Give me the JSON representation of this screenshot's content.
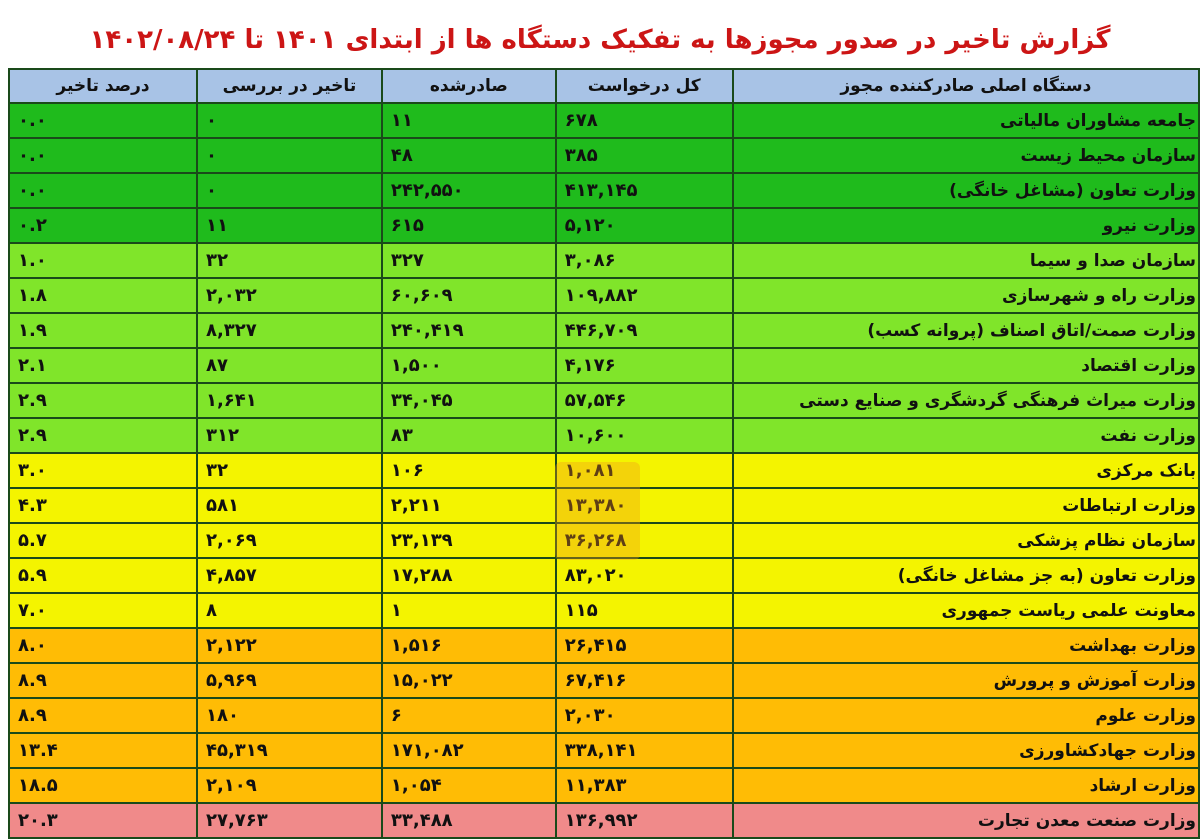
{
  "title": "گزارش تاخیر در صدور مجوزها به تفکیک دستگاه ها از ابتدای ۱۴۰۱ تا ۱۴۰۲/۰۸/۲۴",
  "headers": {
    "name": "دستگاه اصلی صادرکننده مجوز",
    "total": "کل درخواست",
    "issued": "صادرشده",
    "delay": "تاخیر در بررسی",
    "pct": "درصد تاخیر"
  },
  "colors": {
    "dark_green": "#1fbb1c",
    "light_green": "#80e52a",
    "yellow": "#f4f400",
    "orange": "#ffbc05",
    "red": "#f08a8a",
    "header": "#a8c3e6",
    "title": "#cc1515"
  },
  "watermark": "Tasnim",
  "rows": [
    {
      "name": "جامعه مشاوران مالیاتی",
      "total": "۶۷۸",
      "issued": "۱۱",
      "delay": "۰",
      "pct": "۰.۰",
      "band": "g1"
    },
    {
      "name": "سازمان محیط زیست",
      "total": "۳۸۵",
      "issued": "۴۸",
      "delay": "۰",
      "pct": "۰.۰",
      "band": "g1"
    },
    {
      "name": "وزارت تعاون (مشاغل خانگی)",
      "total": "۴۱۳,۱۴۵",
      "issued": "۲۴۲,۵۵۰",
      "delay": "۰",
      "pct": "۰.۰",
      "band": "g1"
    },
    {
      "name": "وزارت نیرو",
      "total": "۵,۱۲۰",
      "issued": "۶۱۵",
      "delay": "۱۱",
      "pct": "۰.۲",
      "band": "g1"
    },
    {
      "name": "سازمان صدا و سیما",
      "total": "۳,۰۸۶",
      "issued": "۳۲۷",
      "delay": "۳۲",
      "pct": "۱.۰",
      "band": "g2"
    },
    {
      "name": "وزارت راه و شهرسازی",
      "total": "۱۰۹,۸۸۲",
      "issued": "۶۰,۶۰۹",
      "delay": "۲,۰۳۲",
      "pct": "۱.۸",
      "band": "g2"
    },
    {
      "name": "وزارت صمت/اتاق اصناف (پروانه کسب)",
      "total": "۴۴۶,۷۰۹",
      "issued": "۲۴۰,۴۱۹",
      "delay": "۸,۳۲۷",
      "pct": "۱.۹",
      "band": "g2"
    },
    {
      "name": "وزارت اقتصاد",
      "total": "۴,۱۷۶",
      "issued": "۱,۵۰۰",
      "delay": "۸۷",
      "pct": "۲.۱",
      "band": "g2"
    },
    {
      "name": "وزارت میراث فرهنگی گردشگری و صنایع دستی",
      "total": "۵۷,۵۴۶",
      "issued": "۳۴,۰۴۵",
      "delay": "۱,۶۴۱",
      "pct": "۲.۹",
      "band": "g2"
    },
    {
      "name": "وزارت نفت",
      "total": "۱۰,۶۰۰",
      "issued": "۸۳",
      "delay": "۳۱۲",
      "pct": "۲.۹",
      "band": "g2"
    },
    {
      "name": "بانک مرکزی",
      "total": "۱,۰۸۱",
      "issued": "۱۰۶",
      "delay": "۳۲",
      "pct": "۳.۰",
      "band": "y"
    },
    {
      "name": "وزارت ارتباطات",
      "total": "۱۳,۳۸۰",
      "issued": "۲,۲۱۱",
      "delay": "۵۸۱",
      "pct": "۴.۳",
      "band": "y"
    },
    {
      "name": "سازمان نظام پزشکی",
      "total": "۳۶,۲۶۸",
      "issued": "۲۳,۱۳۹",
      "delay": "۲,۰۶۹",
      "pct": "۵.۷",
      "band": "y"
    },
    {
      "name": "وزارت تعاون (به جز مشاغل خانگی)",
      "total": "۸۳,۰۲۰",
      "issued": "۱۷,۲۸۸",
      "delay": "۴,۸۵۷",
      "pct": "۵.۹",
      "band": "y"
    },
    {
      "name": "معاونت علمی ریاست جمهوری",
      "total": "۱۱۵",
      "issued": "۱",
      "delay": "۸",
      "pct": "۷.۰",
      "band": "y"
    },
    {
      "name": "وزارت بهداشت",
      "total": "۲۶,۴۱۵",
      "issued": "۱,۵۱۶",
      "delay": "۲,۱۲۲",
      "pct": "۸.۰",
      "band": "o"
    },
    {
      "name": "وزارت آموزش و پرورش",
      "total": "۶۷,۴۱۶",
      "issued": "۱۵,۰۲۲",
      "delay": "۵,۹۶۹",
      "pct": "۸.۹",
      "band": "o"
    },
    {
      "name": "وزارت علوم",
      "total": "۲,۰۳۰",
      "issued": "۶",
      "delay": "۱۸۰",
      "pct": "۸.۹",
      "band": "o"
    },
    {
      "name": "وزارت جهادکشاورزی",
      "total": "۳۳۸,۱۴۱",
      "issued": "۱۷۱,۰۸۲",
      "delay": "۴۵,۳۱۹",
      "pct": "۱۳.۴",
      "band": "o"
    },
    {
      "name": "وزارت ارشاد",
      "total": "۱۱,۳۸۳",
      "issued": "۱,۰۵۴",
      "delay": "۲,۱۰۹",
      "pct": "۱۸.۵",
      "band": "o"
    },
    {
      "name": "وزارت صنعت معدن تجارت",
      "total": "۱۳۶,۹۹۲",
      "issued": "۳۳,۴۸۸",
      "delay": "۲۷,۷۶۳",
      "pct": "۲۰.۳",
      "band": "r"
    }
  ]
}
